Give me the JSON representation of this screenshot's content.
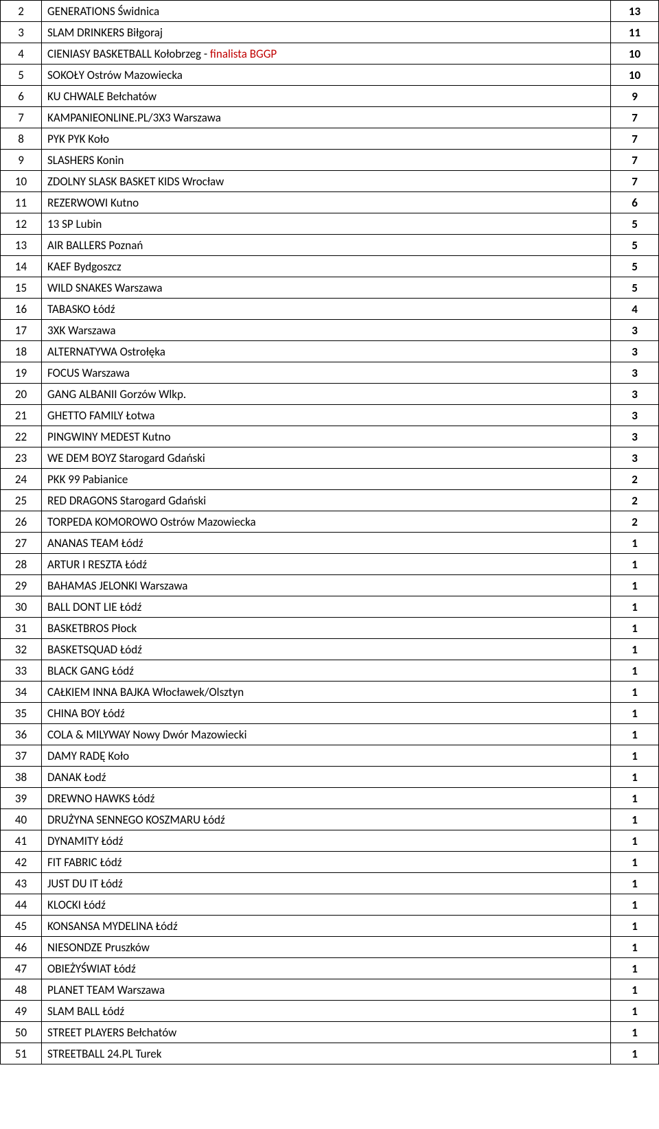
{
  "table": {
    "rows": [
      {
        "rank": "2",
        "name": "GENERATIONS Świdnica",
        "score": "13",
        "finalist": false
      },
      {
        "rank": "3",
        "name": "SLAM DRINKERS Biłgoraj",
        "score": "11",
        "finalist": false
      },
      {
        "rank": "4",
        "name": "CIENIASY BASKETBALL Kołobrzeg - ",
        "finalistText": "finalista BGGP",
        "score": "10",
        "finalist": true
      },
      {
        "rank": "5",
        "name": "SOKOŁY Ostrów Mazowiecka",
        "score": "10",
        "finalist": false
      },
      {
        "rank": "6",
        "name": "KU CHWALE Bełchatów",
        "score": "9",
        "finalist": false
      },
      {
        "rank": "7",
        "name": "KAMPANIEONLINE.PL/3X3 Warszawa",
        "score": "7",
        "finalist": false
      },
      {
        "rank": "8",
        "name": "PYK PYK Koło",
        "score": "7",
        "finalist": false
      },
      {
        "rank": "9",
        "name": "SLASHERS Konin",
        "score": "7",
        "finalist": false
      },
      {
        "rank": "10",
        "name": "ZDOLNY SLASK BASKET KIDS Wrocław",
        "score": "7",
        "finalist": false
      },
      {
        "rank": "11",
        "name": "REZERWOWI Kutno",
        "score": "6",
        "finalist": false
      },
      {
        "rank": "12",
        "name": "13 SP Lubin",
        "score": "5",
        "finalist": false
      },
      {
        "rank": "13",
        "name": "AIR BALLERS Poznań",
        "score": "5",
        "finalist": false
      },
      {
        "rank": "14",
        "name": "KAEF Bydgoszcz",
        "score": "5",
        "finalist": false
      },
      {
        "rank": "15",
        "name": "WILD SNAKES Warszawa",
        "score": "5",
        "finalist": false
      },
      {
        "rank": "16",
        "name": "TABASKO Łódź",
        "score": "4",
        "finalist": false
      },
      {
        "rank": "17",
        "name": "3XK Warszawa",
        "score": "3",
        "finalist": false
      },
      {
        "rank": "18",
        "name": "ALTERNATYWA Ostrołęka",
        "score": "3",
        "finalist": false
      },
      {
        "rank": "19",
        "name": "FOCUS Warszawa",
        "score": "3",
        "finalist": false
      },
      {
        "rank": "20",
        "name": "GANG ALBANII Gorzów Wlkp.",
        "score": "3",
        "finalist": false
      },
      {
        "rank": "21",
        "name": "GHETTO FAMILY Łotwa",
        "score": "3",
        "finalist": false
      },
      {
        "rank": "22",
        "name": "PINGWINY MEDEST Kutno",
        "score": "3",
        "finalist": false
      },
      {
        "rank": "23",
        "name": "WE DEM BOYZ Starogard Gdański",
        "score": "3",
        "finalist": false
      },
      {
        "rank": "24",
        "name": "PKK 99 Pabianice",
        "score": "2",
        "finalist": false
      },
      {
        "rank": "25",
        "name": "RED DRAGONS Starogard Gdański",
        "score": "2",
        "finalist": false
      },
      {
        "rank": "26",
        "name": "TORPEDA KOMOROWO Ostrów Mazowiecka",
        "score": "2",
        "finalist": false
      },
      {
        "rank": "27",
        "name": "ANANAS TEAM Łódź",
        "score": "1",
        "finalist": false
      },
      {
        "rank": "28",
        "name": "ARTUR I RESZTA Łódź",
        "score": "1",
        "finalist": false
      },
      {
        "rank": "29",
        "name": "BAHAMAS JELONKI Warszawa",
        "score": "1",
        "finalist": false
      },
      {
        "rank": "30",
        "name": "BALL DONT LIE Łódź",
        "score": "1",
        "finalist": false
      },
      {
        "rank": "31",
        "name": "BASKETBROS Płock",
        "score": "1",
        "finalist": false
      },
      {
        "rank": "32",
        "name": "BASKETSQUAD Łódź",
        "score": "1",
        "finalist": false
      },
      {
        "rank": "33",
        "name": "BLACK GANG Łódź",
        "score": "1",
        "finalist": false
      },
      {
        "rank": "34",
        "name": "CAŁKIEM INNA BAJKA Włocławek/Olsztyn",
        "score": "1",
        "finalist": false
      },
      {
        "rank": "35",
        "name": "CHINA BOY Łódź",
        "score": "1",
        "finalist": false
      },
      {
        "rank": "36",
        "name": "COLA & MILYWAY Nowy Dwór Mazowiecki",
        "score": "1",
        "finalist": false
      },
      {
        "rank": "37",
        "name": "DAMY RADĘ Koło",
        "score": "1",
        "finalist": false
      },
      {
        "rank": "38",
        "name": "DANAK Łodź",
        "score": "1",
        "finalist": false
      },
      {
        "rank": "39",
        "name": "DREWNO HAWKS Łódź",
        "score": "1",
        "finalist": false
      },
      {
        "rank": "40",
        "name": "DRUŻYNA SENNEGO KOSZMARU Łódź",
        "score": "1",
        "finalist": false
      },
      {
        "rank": "41",
        "name": "DYNAMITY Łódź",
        "score": "1",
        "finalist": false
      },
      {
        "rank": "42",
        "name": "FIT FABRIC Łódź",
        "score": "1",
        "finalist": false
      },
      {
        "rank": "43",
        "name": "JUST DU IT Łódź",
        "score": "1",
        "finalist": false
      },
      {
        "rank": "44",
        "name": "KLOCKI Łódź",
        "score": "1",
        "finalist": false
      },
      {
        "rank": "45",
        "name": "KONSANSA MYDELINA Łódź",
        "score": "1",
        "finalist": false
      },
      {
        "rank": "46",
        "name": "NIESONDZE Pruszków",
        "score": "1",
        "finalist": false
      },
      {
        "rank": "47",
        "name": "OBIEŻYŚWIAT Łódź",
        "score": "1",
        "finalist": false
      },
      {
        "rank": "48",
        "name": "PLANET TEAM Warszawa",
        "score": "1",
        "finalist": false
      },
      {
        "rank": "49",
        "name": "SLAM BALL Łódź",
        "score": "1",
        "finalist": false
      },
      {
        "rank": "50",
        "name": "STREET PLAYERS Bełchatów",
        "score": "1",
        "finalist": false
      },
      {
        "rank": "51",
        "name": "STREETBALL 24.PL Turek",
        "score": "1",
        "finalist": false
      }
    ]
  },
  "colors": {
    "border": "#000000",
    "text": "#000000",
    "finalist": "#c00000",
    "background": "#ffffff"
  },
  "typography": {
    "font_family": "Calibri, Arial, sans-serif",
    "font_size": 17,
    "score_weight": "bold"
  }
}
